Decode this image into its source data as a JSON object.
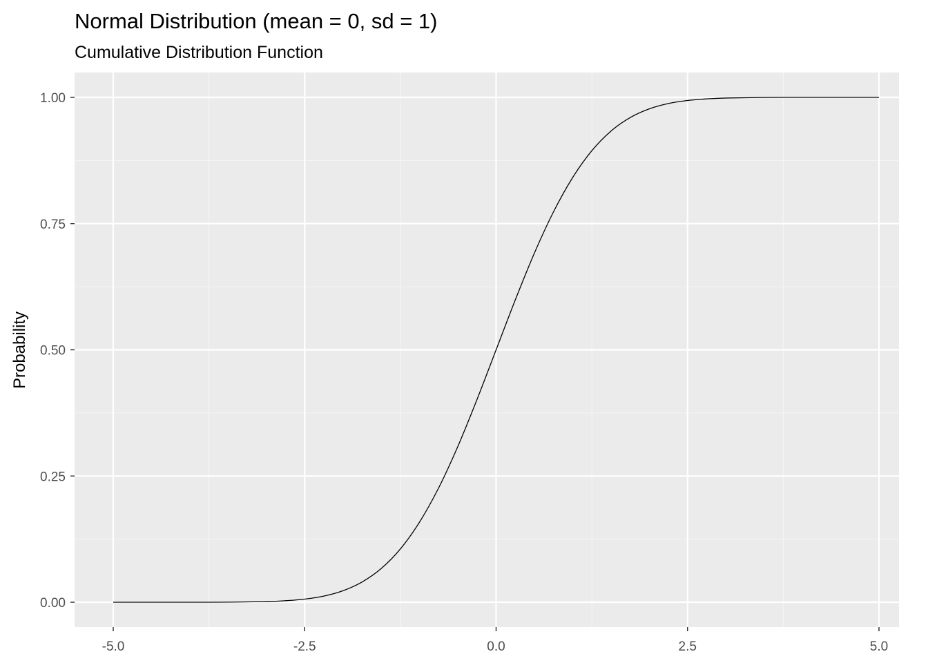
{
  "chart_data": {
    "type": "line",
    "title": "Normal Distribution (mean = 0, sd = 1)",
    "subtitle": "Cumulative Distribution Function",
    "xlabel": "",
    "ylabel": "Probability",
    "xlim": [
      -5.0,
      5.0
    ],
    "ylim": [
      0.0,
      1.0
    ],
    "x_ticks": [
      -5.0,
      -2.5,
      0.0,
      2.5,
      5.0
    ],
    "x_tick_labels": [
      "-5.0",
      "-2.5",
      "0.0",
      "2.5",
      "5.0"
    ],
    "y_ticks": [
      0.0,
      0.25,
      0.5,
      0.75,
      1.0
    ],
    "y_tick_labels": [
      "0.00",
      "0.25",
      "0.50",
      "0.75",
      "1.00"
    ],
    "grid": true,
    "legend": "none",
    "series": [
      {
        "color": "#000000",
        "x": [
          -5.0,
          -4.5,
          -4.0,
          -3.5,
          -3.0,
          -2.75,
          -2.5,
          -2.25,
          -2.0,
          -1.75,
          -1.5,
          -1.25,
          -1.0,
          -0.75,
          -0.5,
          -0.25,
          0.0,
          0.25,
          0.5,
          0.75,
          1.0,
          1.25,
          1.5,
          1.75,
          2.0,
          2.25,
          2.5,
          2.75,
          3.0,
          3.5,
          4.0,
          4.5,
          5.0
        ],
        "y": [
          0.0,
          0.0,
          0.0,
          0.0002,
          0.0013,
          0.003,
          0.0062,
          0.0122,
          0.0228,
          0.0401,
          0.0668,
          0.1056,
          0.1587,
          0.2266,
          0.3085,
          0.4013,
          0.5,
          0.5987,
          0.6915,
          0.7734,
          0.8413,
          0.8944,
          0.9332,
          0.9599,
          0.9772,
          0.9878,
          0.9938,
          0.997,
          0.9987,
          0.9998,
          1.0,
          1.0,
          1.0
        ]
      }
    ],
    "colors": {
      "panel_background": "#ebebeb",
      "grid_major": "#ffffff",
      "grid_minor": "#f5f5f5",
      "tick_text": "#4d4d4d",
      "tick_mark": "#333333",
      "line": "#000000"
    }
  }
}
